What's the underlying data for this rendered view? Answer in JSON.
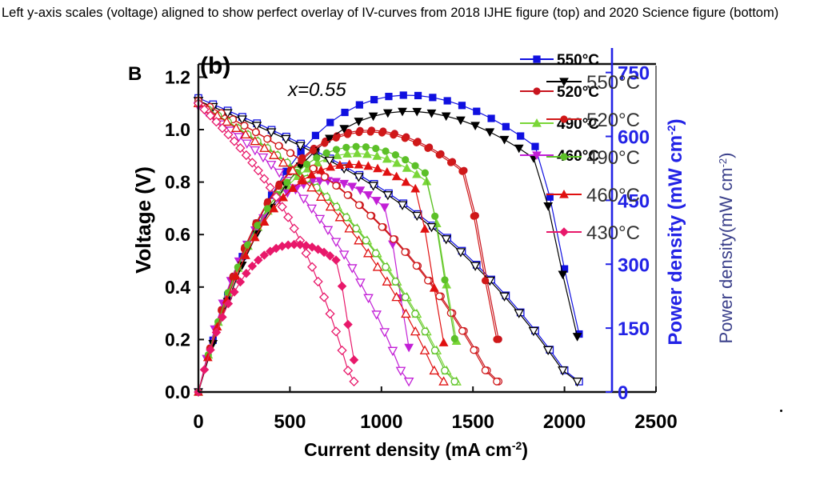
{
  "caption": "Left y-axis scales (voltage) aligned to show perfect overlay of IV-curves from 2018 IJHE figure (top) and 2020 Science figure (bottom)",
  "panel_labels": {
    "top": "(b)",
    "bottom": "B"
  },
  "annotation": "x=0.55",
  "colors": {
    "blue": "#2323e6",
    "black": "#000000",
    "axis": "#111111",
    "grey": "#555555"
  },
  "chart_data": {
    "type": "line",
    "title": "",
    "xlabel": "Current density (mA cm-2)",
    "xlabel_parts": {
      "main": "Current density (mA cm",
      "sup": "-2",
      "close": ")"
    },
    "ylabel_left": "Voltage (V)",
    "ylabel_right_top": {
      "main": "Power density (mW cm",
      "sup": "-2",
      "close": ")"
    },
    "ylabel_right_bottom": {
      "main": "Power density(mW cm",
      "sup": "-2",
      "close": ")"
    },
    "xlim": [
      0,
      2500
    ],
    "ylim_left": [
      0,
      1.25
    ],
    "ylim_right": [
      0,
      770
    ],
    "x_ticks": [
      {
        "value": 0,
        "label": "0"
      },
      {
        "value": 500,
        "label": "500"
      },
      {
        "value": 1000,
        "label": "1000"
      },
      {
        "value": 1500,
        "label": "1500"
      },
      {
        "value": 2000,
        "label": "2000"
      },
      {
        "value": 2500,
        "label": "2500"
      }
    ],
    "y_left_ticks": [
      {
        "value": 0.0,
        "label": "0.0"
      },
      {
        "value": 0.2,
        "label": "0.2"
      },
      {
        "value": 0.4,
        "label": "0.4"
      },
      {
        "value": 0.6,
        "label": "0.6"
      },
      {
        "value": 0.8,
        "label": "0.8"
      },
      {
        "value": 1.0,
        "label": "1.0"
      },
      {
        "value": 1.2,
        "label": "1.2"
      }
    ],
    "y_right_ticks": [
      {
        "value": 0,
        "label": "0"
      },
      {
        "value": 150,
        "label": "150"
      },
      {
        "value": 300,
        "label": "300"
      },
      {
        "value": 450,
        "label": "450"
      },
      {
        "value": 600,
        "label": "600"
      },
      {
        "value": 750,
        "label": "750"
      }
    ],
    "legend_top": [
      {
        "label": "550°C",
        "series": "550"
      },
      {
        "label": "520°C",
        "series": "520"
      },
      {
        "label": "490°C",
        "series": "490"
      },
      {
        "label": "460°C",
        "series": "460"
      }
    ],
    "legend_bottom": [
      {
        "label": "550°C",
        "series": "s550"
      },
      {
        "label": "520°C",
        "series": "s520"
      },
      {
        "label": "490°C",
        "series": "s490"
      },
      {
        "label": "460°C",
        "series": "s460"
      },
      {
        "label": "430°C",
        "series": "s430"
      }
    ],
    "series": [
      {
        "id": "550",
        "name": "550°C",
        "color": "#1010e0",
        "marker": "square",
        "ocv": 1.12,
        "isc": 2080,
        "pmax": 700,
        "jpeak": 1170
      },
      {
        "id": "520",
        "name": "520°C",
        "color": "#c8141e",
        "marker": "circle",
        "ocv": 1.11,
        "isc": 1640,
        "pmax": 618,
        "jpeak": 960
      },
      {
        "id": "490",
        "name": "490°C",
        "color": "#7ad638",
        "marker": "triangle",
        "ocv": 1.1,
        "isc": 1410,
        "pmax": 565,
        "jpeak": 900
      },
      {
        "id": "460",
        "name": "460°C",
        "color": "#c21fd6",
        "marker": "tri-down",
        "ocv": 1.09,
        "isc": 1150,
        "pmax": 500,
        "jpeak": 720
      },
      {
        "id": "s550",
        "name": "550°C (2020)",
        "color": "#000000",
        "marker": "tri-down",
        "ocv": 1.11,
        "isc": 2070,
        "pmax": 662,
        "jpeak": 1180
      },
      {
        "id": "s520",
        "name": "520°C (2020)",
        "color": "#d01818",
        "marker": "circle",
        "ocv": 1.11,
        "isc": 1630,
        "pmax": 614,
        "jpeak": 960
      },
      {
        "id": "s490",
        "name": "490°C (2020)",
        "color": "#5cc028",
        "marker": "circle",
        "ocv": 1.1,
        "isc": 1400,
        "pmax": 582,
        "jpeak": 920
      },
      {
        "id": "s460",
        "name": "460°C (2020)",
        "color": "#e01010",
        "marker": "triangle",
        "ocv": 1.1,
        "isc": 1340,
        "pmax": 540,
        "jpeak": 880
      },
      {
        "id": "s430",
        "name": "430°C (2020)",
        "color": "#e8186a",
        "marker": "diamond",
        "ocv": 1.1,
        "isc": 850,
        "pmax": 350,
        "jpeak": 560
      }
    ]
  }
}
